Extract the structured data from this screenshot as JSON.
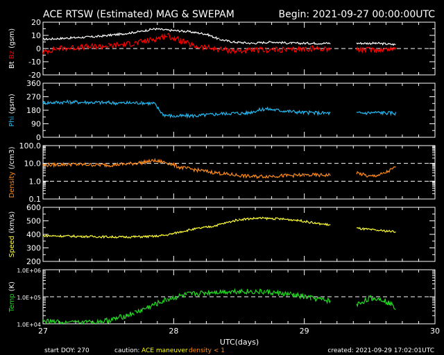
{
  "header": {
    "title": "ACE RTSW (Estimated) MAG & SWEPAM",
    "begin": "Begin: 2021-09-27 00:00:00UTC"
  },
  "footer": {
    "start_doy": "start DOY: 270",
    "caution_label": "caution:",
    "caution_maneuver": "ACE maneuver",
    "caution_density": "density < 1",
    "created": "created: 2021-09-29 17:02:01UTC"
  },
  "colors": {
    "bt": "#ffffff",
    "bz": "#ff0000",
    "phi": "#22b8f0",
    "density": "#ff8c1a",
    "speed": "#ffff33",
    "temp": "#22dd22",
    "axis": "#ffffff",
    "maneuver": "#ffff00",
    "caution_density": "#ff8c1a"
  },
  "chart_data": {
    "type": "scatter",
    "xlabel": "UTC(days)",
    "xlim": [
      27,
      30
    ],
    "x_ticks": [
      "27",
      "28",
      "29",
      "30"
    ],
    "data_gap": [
      29.2,
      29.4
    ],
    "panels": [
      {
        "key": "mag",
        "ylabel": [
          {
            "text": "Bt",
            "color": "#ffffff"
          },
          {
            "text": "Bz",
            "color": "#ff0000"
          },
          {
            "text": "(gsm)",
            "color": "#ffffff"
          }
        ],
        "scale": "linear",
        "ylim": [
          -20,
          20
        ],
        "y_ticks": [
          "-20",
          "-10",
          "0",
          "10",
          "20"
        ],
        "y_tick_values": [
          -20,
          -10,
          0,
          10,
          20
        ],
        "ref_lines": [
          0
        ],
        "series": [
          {
            "key": "bt",
            "color": "#ffffff",
            "band": 0.8,
            "points": [
              [
                27.0,
                7
              ],
              [
                27.2,
                8
              ],
              [
                27.4,
                9
              ],
              [
                27.6,
                11
              ],
              [
                27.75,
                13
              ],
              [
                27.85,
                15
              ],
              [
                27.95,
                14
              ],
              [
                28.1,
                13
              ],
              [
                28.25,
                11
              ],
              [
                28.35,
                7
              ],
              [
                28.45,
                5
              ],
              [
                28.6,
                4
              ],
              [
                28.75,
                5
              ],
              [
                28.9,
                4
              ],
              [
                29.05,
                4
              ],
              [
                29.2,
                4
              ],
              [
                29.4,
                4
              ],
              [
                29.55,
                4
              ],
              [
                29.7,
                3
              ]
            ]
          },
          {
            "key": "bz",
            "color": "#ff0000",
            "band": 2.2,
            "points": [
              [
                27.0,
                -3
              ],
              [
                27.1,
                0
              ],
              [
                27.3,
                1
              ],
              [
                27.5,
                2
              ],
              [
                27.7,
                4
              ],
              [
                27.85,
                7
              ],
              [
                27.95,
                10
              ],
              [
                28.05,
                6
              ],
              [
                28.15,
                2
              ],
              [
                28.3,
                0
              ],
              [
                28.5,
                -2
              ],
              [
                28.7,
                -1
              ],
              [
                28.9,
                -1
              ],
              [
                29.05,
                0
              ],
              [
                29.2,
                0
              ],
              [
                29.4,
                -1
              ],
              [
                29.55,
                -1
              ],
              [
                29.7,
                0
              ]
            ]
          }
        ]
      },
      {
        "key": "phi",
        "ylabel": [
          {
            "text": "Phi",
            "color": "#22b8f0"
          },
          {
            "text": "(gsm)",
            "color": "#ffffff"
          }
        ],
        "scale": "linear",
        "ylim": [
          0,
          360
        ],
        "y_ticks": [
          "0",
          "90",
          "180",
          "270",
          "360"
        ],
        "y_tick_values": [
          0,
          90,
          180,
          270,
          360
        ],
        "ref_lines": [],
        "series": [
          {
            "key": "phi",
            "color": "#22b8f0",
            "band": 12,
            "points": [
              [
                27.0,
                230
              ],
              [
                27.2,
                235
              ],
              [
                27.4,
                232
              ],
              [
                27.6,
                228
              ],
              [
                27.75,
                230
              ],
              [
                27.85,
                225
              ],
              [
                27.92,
                150
              ],
              [
                28.0,
                140
              ],
              [
                28.2,
                145
              ],
              [
                28.4,
                160
              ],
              [
                28.55,
                160
              ],
              [
                28.7,
                190
              ],
              [
                28.85,
                175
              ],
              [
                29.0,
                165
              ],
              [
                29.2,
                160
              ],
              [
                29.4,
                160
              ],
              [
                29.55,
                165
              ],
              [
                29.7,
                160
              ]
            ]
          }
        ]
      },
      {
        "key": "density",
        "ylabel": [
          {
            "text": "Density",
            "color": "#ff8c1a"
          },
          {
            "text": "(/cm3)",
            "color": "#ffffff"
          }
        ],
        "scale": "log",
        "ylim": [
          0.1,
          100
        ],
        "y_ticks": [
          "0.1",
          "1.0",
          "10.0",
          "100.0"
        ],
        "y_tick_values": [
          0.1,
          1,
          10,
          100
        ],
        "ref_lines": [
          1,
          10
        ],
        "series": [
          {
            "key": "density",
            "color": "#ff8c1a",
            "band": 0.1,
            "points": [
              [
                27.0,
                8
              ],
              [
                27.2,
                9
              ],
              [
                27.5,
                8
              ],
              [
                27.7,
                10
              ],
              [
                27.85,
                14
              ],
              [
                27.95,
                11
              ],
              [
                28.05,
                6
              ],
              [
                28.2,
                4
              ],
              [
                28.4,
                2.5
              ],
              [
                28.6,
                1.8
              ],
              [
                28.8,
                2
              ],
              [
                29.0,
                2.2
              ],
              [
                29.2,
                2.2
              ],
              [
                29.4,
                3
              ],
              [
                29.5,
                1.8
              ],
              [
                29.6,
                2.5
              ],
              [
                29.7,
                6
              ]
            ]
          }
        ]
      },
      {
        "key": "speed",
        "ylabel": [
          {
            "text": "Speed",
            "color": "#ffff33"
          },
          {
            "text": "(km/s)",
            "color": "#ffffff"
          }
        ],
        "scale": "linear",
        "ylim": [
          200,
          600
        ],
        "y_ticks": [
          "200",
          "300",
          "400",
          "500",
          "600"
        ],
        "y_tick_values": [
          200,
          300,
          400,
          500,
          600
        ],
        "ref_lines": [],
        "series": [
          {
            "key": "speed",
            "color": "#ffff33",
            "band": 8,
            "points": [
              [
                27.0,
                390
              ],
              [
                27.3,
                385
              ],
              [
                27.6,
                380
              ],
              [
                27.85,
                385
              ],
              [
                27.95,
                395
              ],
              [
                28.1,
                430
              ],
              [
                28.3,
                460
              ],
              [
                28.5,
                510
              ],
              [
                28.65,
                520
              ],
              [
                28.8,
                515
              ],
              [
                28.95,
                505
              ],
              [
                29.1,
                480
              ],
              [
                29.2,
                470
              ],
              [
                29.4,
                445
              ],
              [
                29.55,
                430
              ],
              [
                29.7,
                420
              ]
            ]
          }
        ]
      },
      {
        "key": "temp",
        "ylabel": [
          {
            "text": "Temp",
            "color": "#22dd22"
          },
          {
            "text": "(K)",
            "color": "#ffffff"
          }
        ],
        "scale": "log",
        "ylim": [
          10000,
          1000000
        ],
        "y_ticks": [
          "1.0E+04",
          "1.0E+05",
          "1.0E+06"
        ],
        "y_tick_values": [
          10000,
          100000,
          1000000
        ],
        "ref_lines": [
          100000
        ],
        "series": [
          {
            "key": "temp",
            "color": "#22dd22",
            "band": 0.1,
            "points": [
              [
                27.0,
                12000
              ],
              [
                27.2,
                11000
              ],
              [
                27.4,
                11000
              ],
              [
                27.55,
                15000
              ],
              [
                27.7,
                25000
              ],
              [
                27.85,
                50000
              ],
              [
                27.95,
                80000
              ],
              [
                28.1,
                120000
              ],
              [
                28.3,
                150000
              ],
              [
                28.5,
                160000
              ],
              [
                28.7,
                150000
              ],
              [
                28.9,
                120000
              ],
              [
                29.05,
                90000
              ],
              [
                29.2,
                70000
              ],
              [
                29.4,
                50000
              ],
              [
                29.5,
                90000
              ],
              [
                29.6,
                80000
              ],
              [
                29.7,
                40000
              ]
            ]
          }
        ]
      }
    ]
  }
}
